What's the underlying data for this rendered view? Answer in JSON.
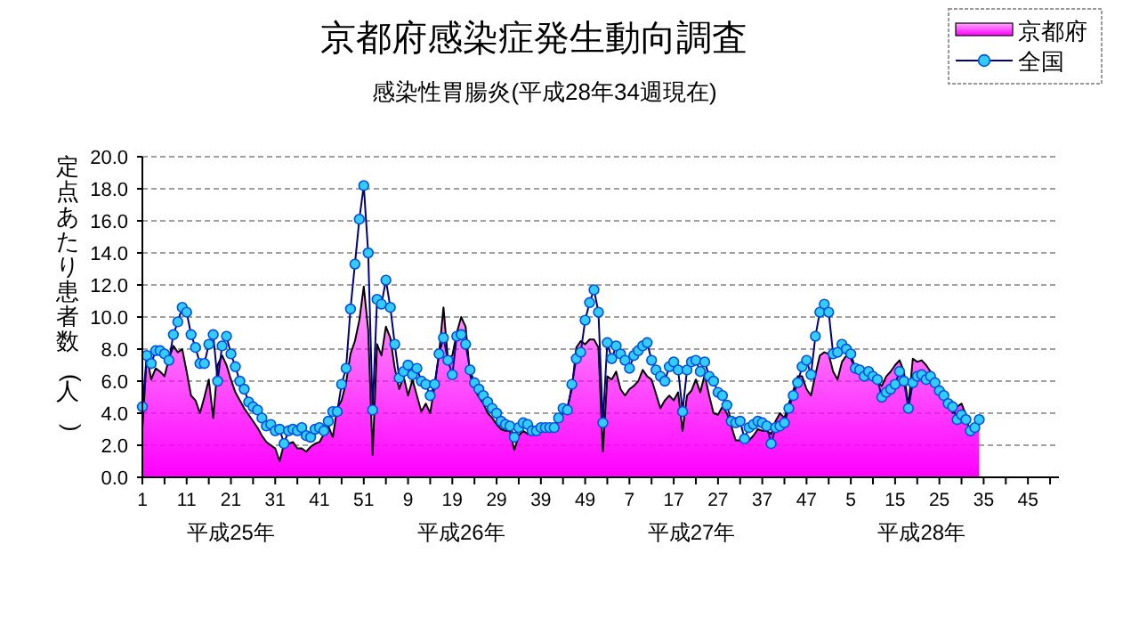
{
  "chart_data": {
    "type": "area",
    "title": "京都府感染症発生動向調査",
    "subtitle": "感染性胃腸炎(平成28年34週現在)",
    "ylabel": "定点あたり患者数(人)",
    "annotations": [
      "平成25年",
      "平成26年",
      "平成27年",
      "平成28年"
    ],
    "categories": [
      "1",
      null,
      null,
      null,
      null,
      null,
      null,
      null,
      null,
      null,
      "11",
      null,
      null,
      null,
      null,
      null,
      null,
      null,
      null,
      null,
      "21",
      null,
      null,
      null,
      null,
      null,
      null,
      null,
      null,
      null,
      "31",
      null,
      null,
      null,
      null,
      null,
      null,
      null,
      null,
      null,
      "41",
      null,
      null,
      null,
      null,
      null,
      null,
      null,
      null,
      null,
      "51",
      null,
      null,
      null,
      null,
      null,
      null,
      null,
      null,
      null,
      "9",
      null,
      null,
      null,
      null,
      null,
      null,
      null,
      null,
      null,
      "19",
      null,
      null,
      null,
      null,
      null,
      null,
      null,
      null,
      null,
      "29",
      null,
      null,
      null,
      null,
      null,
      null,
      null,
      null,
      null,
      "39",
      null,
      null,
      null,
      null,
      null,
      null,
      null,
      null,
      null,
      "49",
      null,
      null,
      null,
      null,
      null,
      null,
      null,
      null,
      null,
      "7",
      null,
      null,
      null,
      null,
      null,
      null,
      null,
      null,
      null,
      "17",
      null,
      null,
      null,
      null,
      null,
      null,
      null,
      null,
      null,
      "27",
      null,
      null,
      null,
      null,
      null,
      null,
      null,
      null,
      null,
      "37",
      null,
      null,
      null,
      null,
      null,
      null,
      null,
      null,
      null,
      "47",
      null,
      null,
      null,
      null,
      null,
      null,
      null,
      null,
      null,
      "5",
      null,
      null,
      null,
      null,
      null,
      null,
      null,
      null,
      null,
      "15",
      null,
      null,
      null,
      null,
      null,
      null,
      null,
      null,
      null,
      "25",
      null,
      null,
      null,
      null,
      null,
      null,
      null,
      null,
      null,
      "35",
      null,
      null,
      null,
      null,
      null,
      null,
      null,
      null,
      null,
      "45",
      null,
      null,
      null,
      null,
      null,
      null,
      null
    ],
    "series": [
      {
        "name": "京都府",
        "color": "#ff00ff",
        "values": [
          3.0,
          7.6,
          6.1,
          6.8,
          6.6,
          6.3,
          7.4,
          8.2,
          7.8,
          8.0,
          6.6,
          5.1,
          4.8,
          4.0,
          5.0,
          6.1,
          3.7,
          7.0,
          7.6,
          7.0,
          6.1,
          5.3,
          4.8,
          4.3,
          3.9,
          3.5,
          3.1,
          2.6,
          2.2,
          2.0,
          1.8,
          1.0,
          2.1,
          2.1,
          2.2,
          1.8,
          1.8,
          1.6,
          1.9,
          2.1,
          2.2,
          2.7,
          3.2,
          2.5,
          4.3,
          4.8,
          5.9,
          7.7,
          8.5,
          9.8,
          11.9,
          9.2,
          1.4,
          8.3,
          7.6,
          9.4,
          8.7,
          6.8,
          5.5,
          6.3,
          5.1,
          6.1,
          5.1,
          4.1,
          4.6,
          4.0,
          5.7,
          7.7,
          10.6,
          7.4,
          7.6,
          9.0,
          10.0,
          9.4,
          6.4,
          5.5,
          5.0,
          4.6,
          4.0,
          3.7,
          3.3,
          3.0,
          2.9,
          2.9,
          1.7,
          2.6,
          2.9,
          2.7,
          3.0,
          3.1,
          3.1,
          2.9,
          3.0,
          3.2,
          3.5,
          4.0,
          4.4,
          5.5,
          8.1,
          8.5,
          8.3,
          8.6,
          8.6,
          8.1,
          1.6,
          6.3,
          6.1,
          6.6,
          5.5,
          5.1,
          5.5,
          5.7,
          6.0,
          6.7,
          6.3,
          6.1,
          5.2,
          4.3,
          4.8,
          5.1,
          4.8,
          5.3,
          2.9,
          5.1,
          5.4,
          6.1,
          5.3,
          6.4,
          5.1,
          4.0,
          3.9,
          4.4,
          4.0,
          3.2,
          2.3,
          2.3,
          2.3,
          2.3,
          2.6,
          3.0,
          2.9,
          2.9,
          2.7,
          3.5,
          4.0,
          3.7,
          4.6,
          5.4,
          6.3,
          6.3,
          5.5,
          5.1,
          6.4,
          7.6,
          7.8,
          7.7,
          6.6,
          6.1,
          7.2,
          7.6,
          7.4,
          6.8,
          6.4,
          6.3,
          6.4,
          6.3,
          5.9,
          5.7,
          6.3,
          6.6,
          7.0,
          7.3,
          6.6,
          4.4,
          7.4,
          7.2,
          7.3,
          7.0,
          6.6,
          5.9,
          5.3,
          5.1,
          4.8,
          4.0,
          4.4,
          4.6,
          3.9,
          2.6,
          2.9,
          3.5,
          null,
          null,
          null,
          null,
          null,
          null,
          null,
          null,
          null,
          null,
          null,
          null,
          null,
          null,
          null,
          null,
          null,
          null
        ]
      },
      {
        "name": "全国",
        "type": "line",
        "color": "#33ccff",
        "marker": "circle",
        "values": [
          4.4,
          7.6,
          7.1,
          7.9,
          7.9,
          7.7,
          7.3,
          8.9,
          9.7,
          10.6,
          10.3,
          8.9,
          8.1,
          7.1,
          7.1,
          8.3,
          8.9,
          6.0,
          8.2,
          8.8,
          7.7,
          6.9,
          6.0,
          5.5,
          4.7,
          4.4,
          4.2,
          3.7,
          3.2,
          3.3,
          2.9,
          3.0,
          2.1,
          2.9,
          3.0,
          2.9,
          3.1,
          2.6,
          2.5,
          3.0,
          3.1,
          2.9,
          3.5,
          4.1,
          4.1,
          5.8,
          6.8,
          10.5,
          13.3,
          16.1,
          18.2,
          14.0,
          4.2,
          11.1,
          10.8,
          12.3,
          10.6,
          8.3,
          6.2,
          6.6,
          7.0,
          6.4,
          6.8,
          6.0,
          5.8,
          5.1,
          5.8,
          7.7,
          8.7,
          7.3,
          6.4,
          8.8,
          8.9,
          8.3,
          6.7,
          5.9,
          5.5,
          5.1,
          4.7,
          4.3,
          4.0,
          3.5,
          3.3,
          3.2,
          2.5,
          3.1,
          3.4,
          3.3,
          2.9,
          2.9,
          3.1,
          3.1,
          3.1,
          3.1,
          3.7,
          4.3,
          4.2,
          5.8,
          7.4,
          7.8,
          9.8,
          10.9,
          11.7,
          10.3,
          3.4,
          8.4,
          7.4,
          8.2,
          7.7,
          7.3,
          6.8,
          7.6,
          7.9,
          8.2,
          8.4,
          7.3,
          6.7,
          6.3,
          6.0,
          6.9,
          7.2,
          6.7,
          4.1,
          6.7,
          7.2,
          7.3,
          6.6,
          7.2,
          6.3,
          6.0,
          5.3,
          5.1,
          4.5,
          3.5,
          3.4,
          3.5,
          2.4,
          3.1,
          3.3,
          3.5,
          3.4,
          3.2,
          2.1,
          3.1,
          3.2,
          3.4,
          4.3,
          5.1,
          5.9,
          6.9,
          7.3,
          6.4,
          8.8,
          10.3,
          10.8,
          10.3,
          7.7,
          7.8,
          8.3,
          8.0,
          7.7,
          6.8,
          6.7,
          6.3,
          6.6,
          6.3,
          6.1,
          5.0,
          5.3,
          5.5,
          5.8,
          6.6,
          6.0,
          4.3,
          5.9,
          6.3,
          6.4,
          6.1,
          6.3,
          5.9,
          5.4,
          5.1,
          4.6,
          4.4,
          3.6,
          3.9,
          3.6,
          2.9,
          3.1,
          3.6,
          null,
          null,
          null,
          null,
          null,
          null,
          null,
          null,
          null,
          null,
          null,
          null,
          null,
          null,
          null,
          null,
          null,
          null
        ]
      }
    ],
    "ylim": [
      0,
      20
    ],
    "yticks": [
      {
        "value": 0,
        "label": "0.0"
      },
      {
        "value": 2,
        "label": "2.0"
      },
      {
        "value": 4,
        "label": "4.0"
      },
      {
        "value": 6,
        "label": "6.0"
      },
      {
        "value": 8,
        "label": "8.0"
      },
      {
        "value": 10,
        "label": "10.0"
      },
      {
        "value": 12,
        "label": "12.0"
      },
      {
        "value": 14,
        "label": "14.0"
      },
      {
        "value": 16,
        "label": "16.0"
      },
      {
        "value": 18,
        "label": "18.0"
      },
      {
        "value": 20,
        "label": "20.0"
      }
    ],
    "grid": "y",
    "legend": "top right",
    "line_style": "solid"
  }
}
